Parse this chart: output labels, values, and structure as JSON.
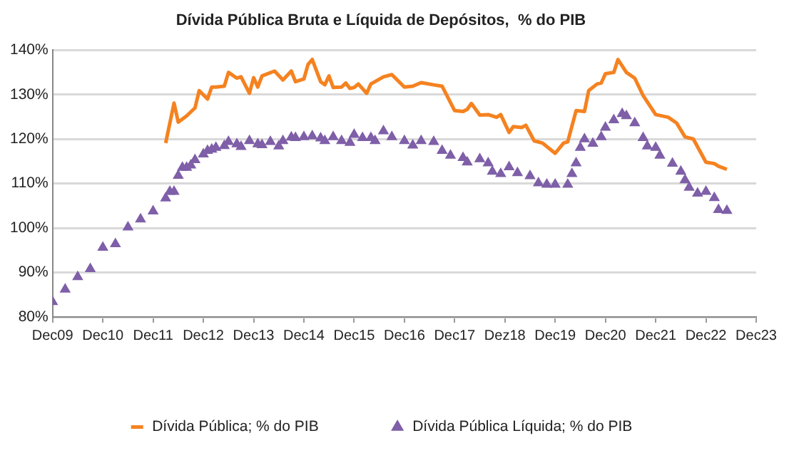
{
  "chart_data": {
    "type": "line",
    "title": "Dívida Pública Bruta e Líquida de Depósitos,  % do PIB",
    "xlim": [
      "2009-12",
      "2023-12"
    ],
    "xticks": [
      {
        "value": "2009-12",
        "label": "Dec09"
      },
      {
        "value": "2010-12",
        "label": "Dec10"
      },
      {
        "value": "2011-12",
        "label": "Dec11"
      },
      {
        "value": "2012-12",
        "label": "Dec12"
      },
      {
        "value": "2013-12",
        "label": "Dec13"
      },
      {
        "value": "2014-12",
        "label": "Dec14"
      },
      {
        "value": "2015-12",
        "label": "Dec15"
      },
      {
        "value": "2016-12",
        "label": "Dec16"
      },
      {
        "value": "2017-12",
        "label": "Dec17"
      },
      {
        "value": "2018-12",
        "label": "Dez18"
      },
      {
        "value": "2019-12",
        "label": "Dec19"
      },
      {
        "value": "2020-12",
        "label": "Dec20"
      },
      {
        "value": "2021-12",
        "label": "Dec21"
      },
      {
        "value": "2022-12",
        "label": "Dec22"
      },
      {
        "value": "2023-12",
        "label": "Dec23"
      }
    ],
    "ylim": [
      80,
      140
    ],
    "yticks": [
      {
        "value": 80,
        "label": "80%"
      },
      {
        "value": 90,
        "label": "90%"
      },
      {
        "value": 100,
        "label": "100%"
      },
      {
        "value": 110,
        "label": "110%"
      },
      {
        "value": 120,
        "label": "120%"
      },
      {
        "value": 130,
        "label": "130%"
      },
      {
        "value": 140,
        "label": "140%"
      }
    ],
    "grid": "y",
    "legend": "bottom",
    "series": [
      {
        "name": "Dívida Pública; % do PIB",
        "type": "line",
        "marker": "none",
        "line_style": "solid",
        "color": "#f58220",
        "x": [
          "2012-03",
          "2012-05",
          "2012-06",
          "2012-08",
          "2012-10",
          "2012-11",
          "2013-01",
          "2013-02",
          "2013-03",
          "2013-05",
          "2013-06",
          "2013-08",
          "2013-09",
          "2013-11",
          "2013-12",
          "2014-01",
          "2014-02",
          "2014-05",
          "2014-07",
          "2014-09",
          "2014-10",
          "2014-12",
          "2015-01",
          "2015-02",
          "2015-04",
          "2015-05",
          "2015-06",
          "2015-07",
          "2015-09",
          "2015-10",
          "2015-11",
          "2015-12",
          "2016-01",
          "2016-03",
          "2016-04",
          "2016-07",
          "2016-09",
          "2016-12",
          "2017-02",
          "2017-04",
          "2017-07",
          "2017-09",
          "2017-12",
          "2018-02",
          "2018-03",
          "2018-04",
          "2018-06",
          "2018-08",
          "2018-10",
          "2018-11",
          "2019-01",
          "2019-02",
          "2019-04",
          "2019-05",
          "2019-07",
          "2019-09",
          "2019-12",
          "2020-02",
          "2020-03",
          "2020-05",
          "2020-07",
          "2020-08",
          "2020-10",
          "2020-11",
          "2020-12",
          "2021-02",
          "2021-03",
          "2021-05",
          "2021-07",
          "2021-09",
          "2021-12",
          "2022-03",
          "2022-05",
          "2022-07",
          "2022-09",
          "2022-12",
          "2023-02",
          "2023-03",
          "2023-05"
        ],
        "values": [
          119.1,
          128.1,
          123.8,
          125.2,
          127,
          130.9,
          129,
          131.7,
          131.7,
          131.9,
          135,
          133.7,
          134,
          130.3,
          133.8,
          131.7,
          134.2,
          135.3,
          133.3,
          135.3,
          132.9,
          133.5,
          136.8,
          137.9,
          132.9,
          132.2,
          134.2,
          131.6,
          131.7,
          132.6,
          131.4,
          131.6,
          132.4,
          130.3,
          132.4,
          134,
          134.5,
          131.7,
          131.9,
          132.7,
          132.2,
          131.9,
          126.4,
          126.2,
          126.7,
          128,
          125.4,
          125.5,
          124.9,
          125.5,
          121.5,
          122.8,
          122.6,
          123.1,
          119.6,
          119.1,
          116.8,
          119.1,
          119.4,
          126.4,
          126.2,
          130.9,
          132.4,
          132.6,
          134.7,
          135,
          137.9,
          135,
          133.7,
          129.8,
          125.5,
          124.9,
          123.6,
          120.5,
          120,
          114.8,
          114.5,
          113.9,
          113.2
        ]
      },
      {
        "name": "Dívida Pública Líquida; % do PIB",
        "type": "scatter",
        "marker": "triangle",
        "color": "#7f5fa8",
        "x": [
          "2009-12",
          "2010-03",
          "2010-06",
          "2010-09",
          "2010-12",
          "2011-03",
          "2011-06",
          "2011-09",
          "2011-12",
          "2012-03",
          "2012-04",
          "2012-05",
          "2012-06",
          "2012-07",
          "2012-08",
          "2012-09",
          "2012-10",
          "2012-12",
          "2013-01",
          "2013-02",
          "2013-03",
          "2013-05",
          "2013-06",
          "2013-08",
          "2013-09",
          "2013-11",
          "2014-01",
          "2014-02",
          "2014-04",
          "2014-06",
          "2014-07",
          "2014-09",
          "2014-10",
          "2014-12",
          "2015-02",
          "2015-04",
          "2015-05",
          "2015-07",
          "2015-09",
          "2015-11",
          "2015-12",
          "2016-02",
          "2016-04",
          "2016-05",
          "2016-07",
          "2016-09",
          "2016-12",
          "2017-02",
          "2017-04",
          "2017-07",
          "2017-09",
          "2017-11",
          "2018-02",
          "2018-03",
          "2018-06",
          "2018-08",
          "2018-09",
          "2018-11",
          "2019-01",
          "2019-03",
          "2019-06",
          "2019-08",
          "2019-10",
          "2019-12",
          "2020-03",
          "2020-04",
          "2020-05",
          "2020-06",
          "2020-07",
          "2020-09",
          "2020-11",
          "2020-12",
          "2021-02",
          "2021-04",
          "2021-05",
          "2021-07",
          "2021-09",
          "2021-10",
          "2021-12",
          "2022-01",
          "2022-04",
          "2022-06",
          "2022-07",
          "2022-08",
          "2022-10",
          "2022-12",
          "2023-02",
          "2023-03",
          "2023-05"
        ],
        "values": [
          83.4,
          86.2,
          89,
          90.8,
          95.6,
          96.4,
          100.2,
          102,
          103.8,
          106.7,
          108.2,
          108.2,
          111.8,
          113.6,
          113.6,
          114.1,
          115.3,
          116.6,
          117.4,
          117.7,
          118.1,
          118.5,
          119.4,
          118.9,
          118.3,
          119.6,
          118.9,
          118.7,
          119.4,
          118.4,
          119.6,
          120.4,
          120.3,
          120.5,
          120.7,
          120.2,
          119.6,
          120.5,
          119.6,
          119.2,
          121,
          120.3,
          120.3,
          119.6,
          121.8,
          120.5,
          119.6,
          118.6,
          119.6,
          119.4,
          117.4,
          116.3,
          115.8,
          114.8,
          115.5,
          114.6,
          112.7,
          112.2,
          113.7,
          112.4,
          111.7,
          110.1,
          109.8,
          109.8,
          109.8,
          112.2,
          114.6,
          118.1,
          120,
          119,
          120.5,
          122.6,
          124.3,
          125.7,
          125.2,
          123.6,
          120.3,
          118.4,
          118.1,
          116.3,
          114.5,
          112.7,
          110.8,
          109.1,
          107.8,
          108.2,
          106.8,
          104.1,
          103.9
        ]
      }
    ]
  }
}
